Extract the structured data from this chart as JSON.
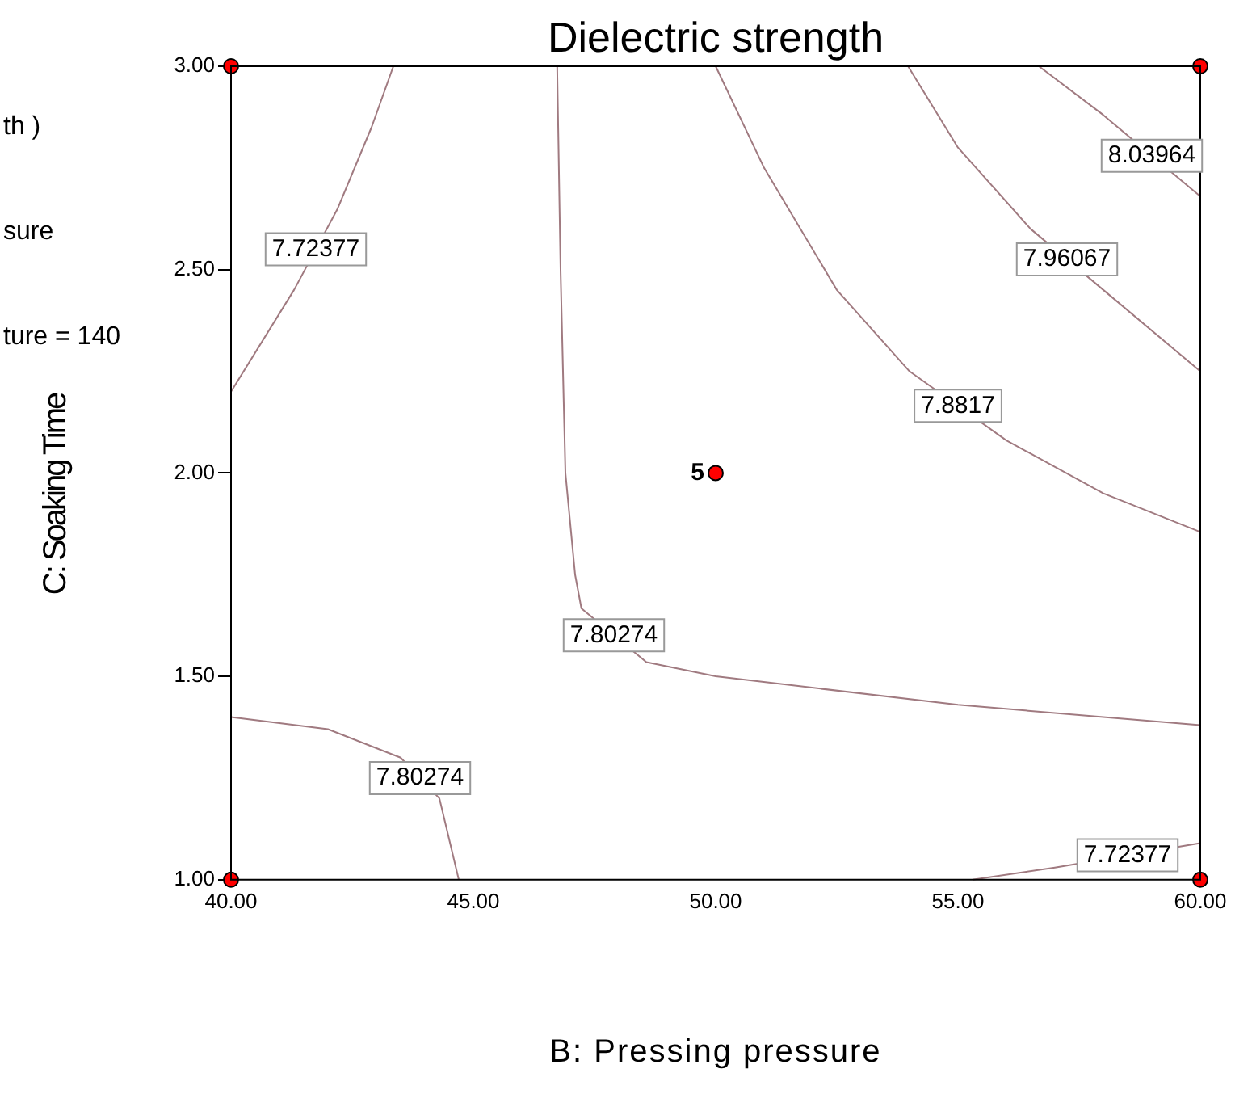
{
  "chart_data": {
    "type": "line",
    "title": "Dielectric strength",
    "xlabel": "B: Pressing pressure",
    "ylabel": "C: Soaking Time",
    "xlim": [
      40,
      60
    ],
    "ylim": [
      1,
      3
    ],
    "xticks": [
      {
        "value": 40,
        "label": "40.00"
      },
      {
        "value": 45,
        "label": "45.00"
      },
      {
        "value": 50,
        "label": "50.00"
      },
      {
        "value": 55,
        "label": "55.00"
      },
      {
        "value": 60,
        "label": "60.00"
      }
    ],
    "yticks": [
      {
        "value": 1,
        "label": "1.00"
      },
      {
        "value": 1.5,
        "label": "1.50"
      },
      {
        "value": 2,
        "label": "2.00"
      },
      {
        "value": 2.5,
        "label": "2.50"
      },
      {
        "value": 3,
        "label": "3.00"
      }
    ],
    "grid": false,
    "legend": false,
    "series": [
      {
        "name": "7.72377",
        "color": "#a07a80",
        "x": [
          43.35,
          42.9,
          42.2,
          41.3,
          40
        ],
        "values": [
          3.0,
          2.85,
          2.65,
          2.45,
          2.2
        ]
      },
      {
        "name": "7.80274",
        "color": "#a07a80",
        "x": [
          46.73,
          46.8,
          46.9,
          47.1,
          47.23,
          48.57,
          50,
          55,
          60
        ],
        "values": [
          3.0,
          2.5,
          2.0,
          1.75,
          1.667,
          1.535,
          1.5,
          1.43,
          1.38
        ]
      },
      {
        "name": "7.8817",
        "color": "#a07a80",
        "x": [
          50,
          51,
          52.5,
          54,
          56,
          58,
          60
        ],
        "values": [
          3.0,
          2.75,
          2.45,
          2.25,
          2.08,
          1.95,
          1.855
        ]
      },
      {
        "name": "7.96067",
        "color": "#a07a80",
        "x": [
          53.97,
          55,
          56.5,
          58,
          60
        ],
        "values": [
          3.0,
          2.8,
          2.6,
          2.45,
          2.25
        ]
      },
      {
        "name": "8.03964",
        "color": "#a07a80",
        "x": [
          56.67,
          58,
          60
        ],
        "values": [
          3.0,
          2.88,
          2.68
        ]
      },
      {
        "name": "7.80274",
        "color": "#a07a80",
        "x": [
          40,
          42,
          43.5,
          44.3,
          44.7
        ],
        "values": [
          1.4,
          1.37,
          1.3,
          1.2,
          1.0
        ]
      },
      {
        "name": "7.72377",
        "color": "#a07a80",
        "x": [
          55.3,
          57,
          60
        ],
        "values": [
          1.0,
          1.03,
          1.09
        ]
      },
      {
        "type": "scatter",
        "marker": "circle",
        "color": "#ff0000",
        "x": [
          40,
          40,
          60,
          60,
          50
        ],
        "values": [
          1,
          3,
          1,
          3,
          2
        ]
      }
    ],
    "annotations": [
      {
        "text": "5",
        "x": 50,
        "y": 2
      },
      "th )",
      "sure",
      "ture  = 140"
    ]
  }
}
